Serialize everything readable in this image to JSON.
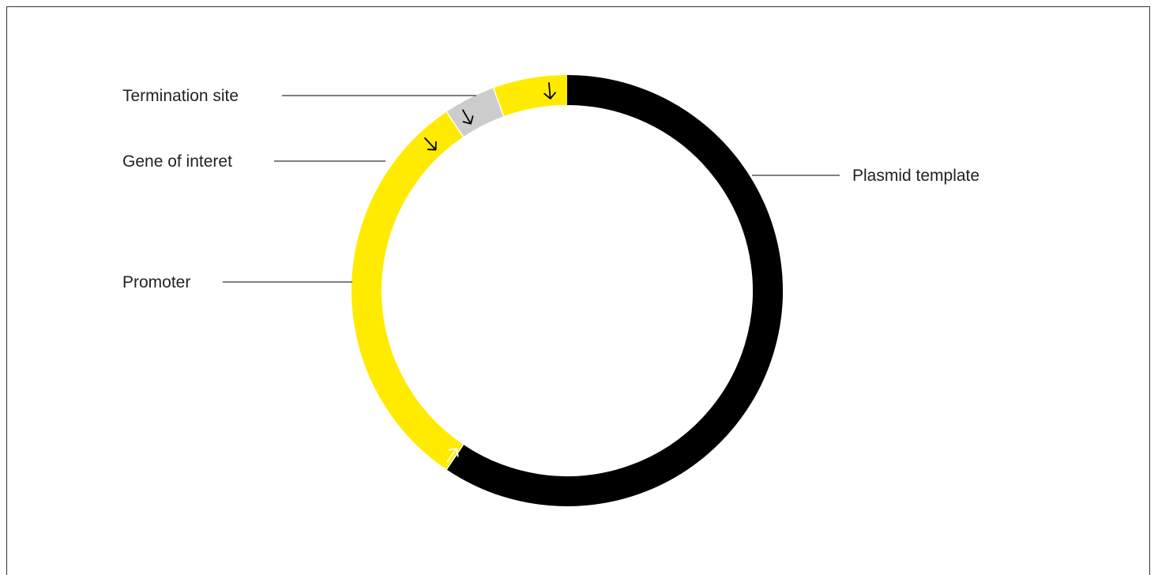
{
  "diagram": {
    "segments": [
      {
        "id": "plasmid",
        "start_deg": 0,
        "end_deg": 214,
        "color": "#000000",
        "label": "Plasmid template"
      },
      {
        "id": "promoter",
        "start_deg": 214,
        "end_deg": 326,
        "color": "#ffeb00",
        "label": "Promoter"
      },
      {
        "id": "gene",
        "start_deg": 326,
        "end_deg": 340,
        "color": "#cccccc",
        "label": "Gene of interet"
      },
      {
        "id": "termination",
        "start_deg": 340,
        "end_deg": 360,
        "color": "#ffeb00",
        "label": "Termination site"
      }
    ],
    "labels": {
      "termination": "Termination site",
      "gene": "Gene of interet",
      "promoter": "Promoter",
      "plasmid": "Plasmid template"
    },
    "colors": {
      "backbone": "#000000",
      "promoter": "#ffeb00",
      "gene": "#cccccc",
      "termination": "#ffeb00",
      "leader_line": "#333333"
    },
    "icons": [
      "arrow-icon"
    ]
  }
}
